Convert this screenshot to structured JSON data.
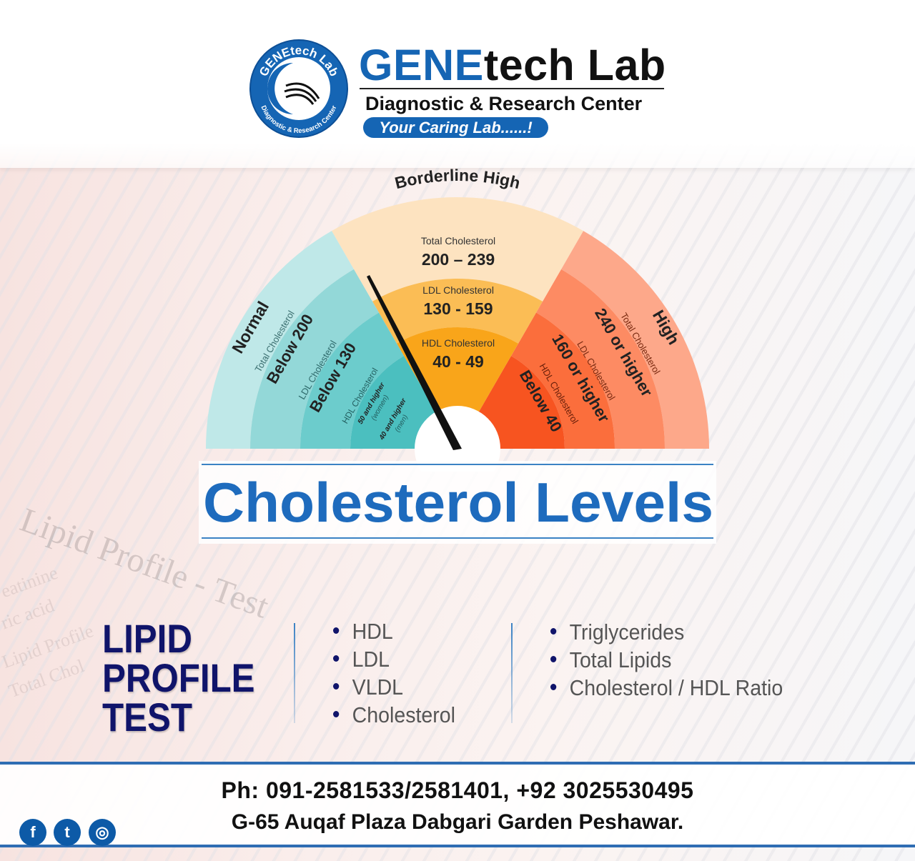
{
  "header": {
    "logo_ring_text_top": "GENEtech Lab",
    "logo_ring_text_bottom": "Diagnostic & Research Center",
    "title_blue": "GENE",
    "title_dark": "tech Lab",
    "subtitle": "Diagnostic & Research Center",
    "tagline": "Your Caring Lab......!"
  },
  "background": {
    "watermark": "Lipid Profile - Test",
    "faint_lines": [
      "eatinine",
      "ric acid",
      "Lipid Profile",
      "Total Chol"
    ]
  },
  "gauge": {
    "normal": {
      "label": "Normal",
      "color": "#5cc5c5",
      "total_label": "Total Cholesterol",
      "total_value": "Below 200",
      "ldl_label": "LDL Cholesterol",
      "ldl_value": "Below 130",
      "hdl_label": "HDL Cholesterol",
      "hdl_women": "50 and higher",
      "hdl_women_note": "(women)",
      "hdl_men": "40 and higher",
      "hdl_men_note": "(men)"
    },
    "borderline": {
      "label": "Borderline High",
      "color": "#f9a51a",
      "total_label": "Total Cholesterol",
      "total_value": "200 – 239",
      "ldl_label": "LDL Cholesterol",
      "ldl_value": "130 - 159",
      "hdl_label": "HDL Cholesterol",
      "hdl_value": "40 - 49"
    },
    "high": {
      "label": "High",
      "color": "#f75420",
      "total_label": "Total Cholesterol",
      "total_value": "240 or higher",
      "ldl_label": "LDL Cholesterol",
      "ldl_value": "160 or higher",
      "hdl_label": "HDL Cholesterol",
      "hdl_value": "Below 40"
    }
  },
  "heading": "Cholesterol Levels",
  "lipid": {
    "title_lines": [
      "LIPID",
      "PROFILE",
      "TEST"
    ],
    "list_a": [
      "HDL",
      "LDL",
      "VLDL",
      "Cholesterol"
    ],
    "list_b": [
      "Triglycerides",
      "Total Lipids",
      "Cholesterol / HDL Ratio"
    ]
  },
  "footer": {
    "phone": "Ph: 091-2581533/2581401, +92 3025530495",
    "address": "G-65 Auqaf Plaza Dabgari Garden Peshawar.",
    "social": [
      {
        "icon": "facebook-icon",
        "glyph": "f"
      },
      {
        "icon": "twitter-icon",
        "glyph": "t"
      },
      {
        "icon": "instagram-icon",
        "glyph": "◎"
      }
    ]
  },
  "colors": {
    "brand_blue": "#1565b4",
    "navy": "#10146a"
  }
}
